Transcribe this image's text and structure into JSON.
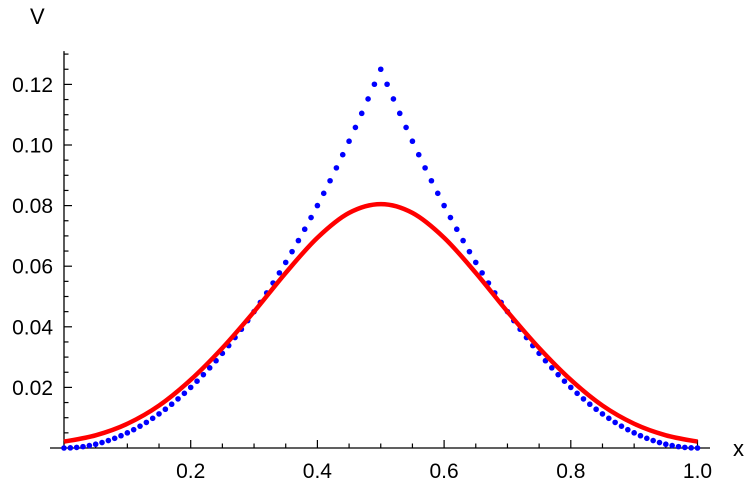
{
  "chart_data": {
    "type": "line",
    "title": "",
    "xlabel": "x",
    "ylabel": "V",
    "xlim": [
      0,
      1.0
    ],
    "ylim": [
      0,
      0.131
    ],
    "x_ticks": [
      0.2,
      0.4,
      0.6,
      0.8,
      1.0
    ],
    "x_tick_labels": [
      "0.2",
      "0.4",
      "0.6",
      "0.8",
      "1.0"
    ],
    "y_ticks": [
      0.02,
      0.04,
      0.06,
      0.08,
      0.1,
      0.12
    ],
    "y_tick_labels": [
      "0.02",
      "0.04",
      "0.06",
      "0.08",
      "0.10",
      "0.12"
    ],
    "grid": false,
    "series": [
      {
        "style": "dots",
        "color": "#0000ff",
        "x_start": 0,
        "x_step": 0.01,
        "values": [
          0,
          5e-05,
          0.0002,
          0.00045,
          0.0008,
          0.00125,
          0.0018,
          0.00245,
          0.0032,
          0.00405,
          0.005,
          0.00605,
          0.0072,
          0.00845,
          0.0098,
          0.01125,
          0.0128,
          0.01445,
          0.0162,
          0.01805,
          0.02,
          0.02205,
          0.0242,
          0.02645,
          0.0288,
          0.03125,
          0.0338,
          0.03645,
          0.0392,
          0.04205,
          0.045,
          0.04805,
          0.0512,
          0.05445,
          0.0578,
          0.06125,
          0.0648,
          0.06845,
          0.0722,
          0.07605,
          0.08,
          0.08405,
          0.0882,
          0.09245,
          0.0968,
          0.10125,
          0.1058,
          0.11045,
          0.1152,
          0.12005,
          0.125,
          0.12005,
          0.1152,
          0.11045,
          0.1058,
          0.10125,
          0.0968,
          0.09245,
          0.0882,
          0.08405,
          0.08,
          0.07605,
          0.0722,
          0.06845,
          0.0648,
          0.06125,
          0.0578,
          0.05445,
          0.0512,
          0.04805,
          0.045,
          0.04205,
          0.0392,
          0.03645,
          0.0338,
          0.03125,
          0.0288,
          0.02645,
          0.0242,
          0.02205,
          0.02,
          0.01805,
          0.0162,
          0.01445,
          0.0128,
          0.01125,
          0.0098,
          0.00845,
          0.0072,
          0.00605,
          0.005,
          0.00405,
          0.0032,
          0.00245,
          0.0018,
          0.00125,
          0.0008,
          0.00045,
          0.0002,
          5e-05,
          0
        ]
      },
      {
        "style": "line",
        "color": "#ff0000",
        "x": [
          0,
          0.05,
          0.1,
          0.15,
          0.2,
          0.25,
          0.3,
          0.35,
          0.4,
          0.45,
          0.5,
          0.55,
          0.6,
          0.65,
          0.7,
          0.75,
          0.8,
          0.85,
          0.9,
          0.95,
          1.0
        ],
        "values": [
          0.0021,
          0.0042,
          0.008,
          0.014,
          0.0225,
          0.033,
          0.045,
          0.0578,
          0.0694,
          0.0776,
          0.0805,
          0.0776,
          0.0694,
          0.0578,
          0.045,
          0.033,
          0.0225,
          0.014,
          0.008,
          0.0042,
          0.0021
        ]
      }
    ]
  }
}
